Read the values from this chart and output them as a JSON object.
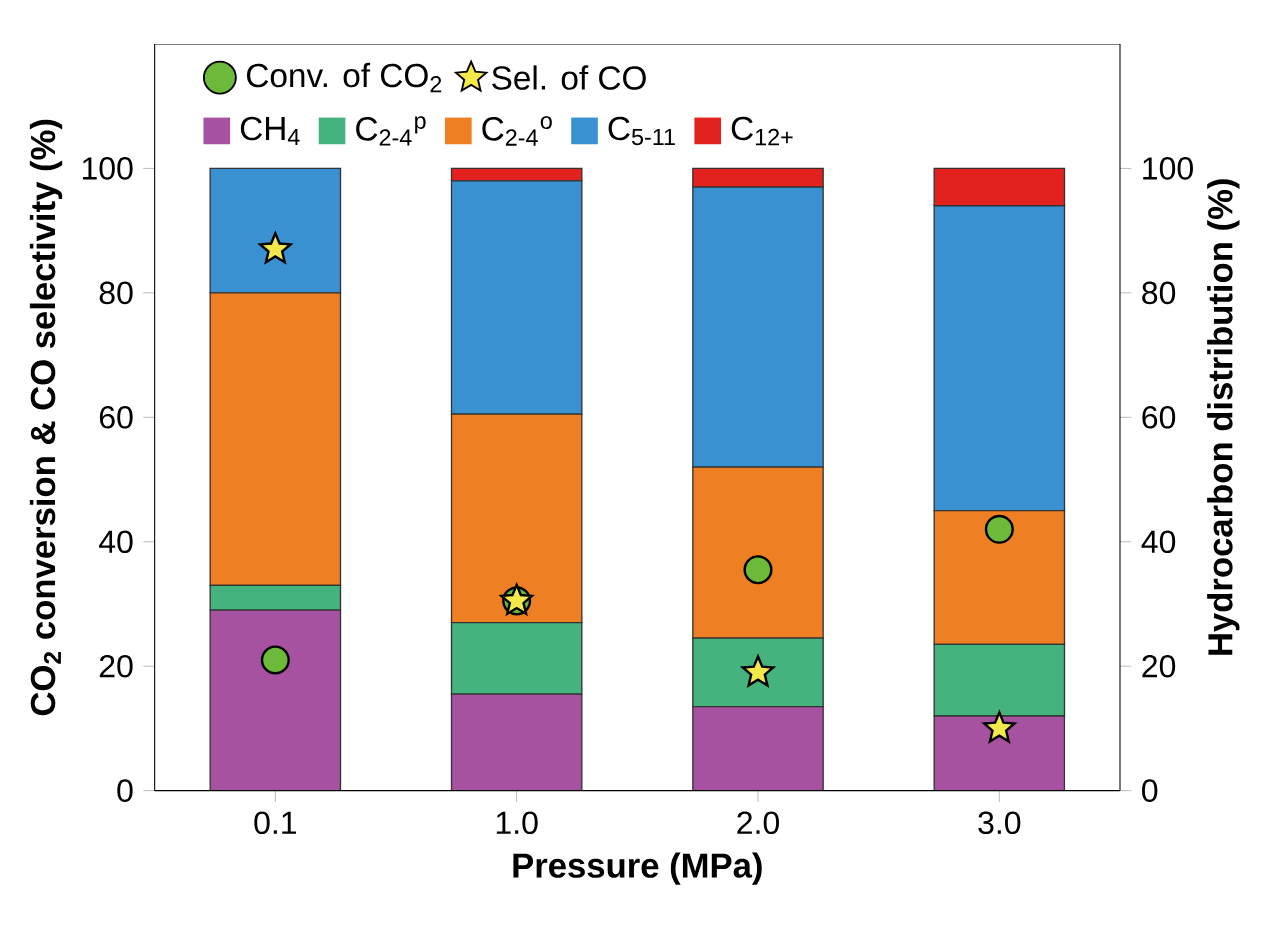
{
  "chart_data": {
    "type": "bar",
    "stacked": true,
    "xlabel": "Pressure (MPa)",
    "ylabel": "CO$_{2}$ conversion & CO selectivity (%)",
    "y2label": "Hydrocarbon distribution (%)",
    "categories": [
      "0.1",
      "1.0",
      "2.0",
      "3.0"
    ],
    "ylim": [
      0,
      120
    ],
    "yticks": [
      0,
      20,
      40,
      60,
      80,
      100
    ],
    "y2lim": [
      0,
      120
    ],
    "y2ticks": [
      0,
      20,
      40,
      60,
      80,
      100
    ],
    "legend": "top",
    "grid": false,
    "series": [
      {
        "name": "Conv. of CO$_{2}$",
        "type": "scatter",
        "marker": "circle",
        "color": "#6db93a",
        "x": [
          "0.1",
          "1.0",
          "2.0",
          "3.0"
        ],
        "values": [
          21,
          30.5,
          35.5,
          42
        ]
      },
      {
        "name": "Sel. of CO",
        "type": "scatter",
        "marker": "star",
        "color": "#f4e94a",
        "x": [
          "0.1",
          "1.0",
          "2.0",
          "3.0"
        ],
        "values": [
          87,
          30.5,
          19,
          10
        ]
      },
      {
        "name": "CH$_{4}$",
        "axis": "y2",
        "color": "#a752a0",
        "values": [
          29,
          15.5,
          13.5,
          12
        ]
      },
      {
        "name": "C$_{2-4}$$^{p}$",
        "axis": "y2",
        "color": "#45b37e",
        "values": [
          4,
          11.5,
          11,
          11.5
        ]
      },
      {
        "name": "C$_{2-4}$$^{o}$",
        "axis": "y2",
        "color": "#ee7f22",
        "values": [
          47,
          33.5,
          27.5,
          21.5
        ]
      },
      {
        "name": "C$_{5-11}$",
        "axis": "y2",
        "color": "#3a91d2",
        "values": [
          20,
          37.5,
          45,
          49
        ]
      },
      {
        "name": "C$_{12+}$",
        "axis": "y2",
        "color": "#e3211f",
        "values": [
          0,
          2,
          3,
          6
        ]
      }
    ]
  }
}
